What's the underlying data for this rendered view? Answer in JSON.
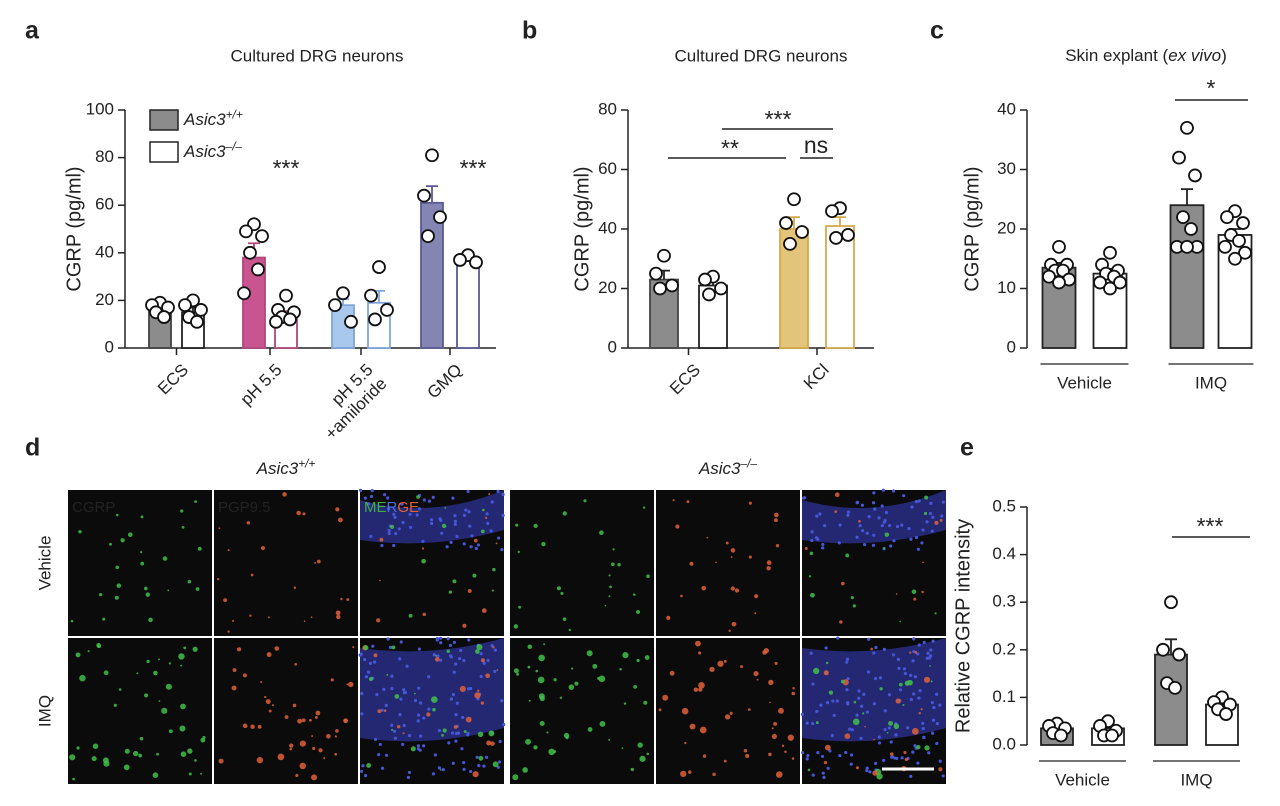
{
  "chart_data": [
    {
      "type": "bar",
      "panel_label": "a",
      "title": "Cultured DRG neurons",
      "ylabel": "CGRP (pg/ml)",
      "categories": [
        "ECS",
        "pH 5.5",
        "pH 5.5\n+amiloride",
        "GMQ"
      ],
      "colors": [
        "#8c8c8c",
        "#c8558f",
        "#a8c8ee",
        "#8585b3"
      ],
      "outline_colors": [
        "#222222",
        "#b0467c",
        "#7fa6d9",
        "#5a5a94"
      ],
      "series": [
        {
          "name": "Asic3+/+",
          "filled": true,
          "values": [
            16,
            38,
            18,
            61
          ],
          "errors": [
            2,
            6,
            2.5,
            7
          ],
          "points": [
            [
              19,
              18,
              17,
              15,
              13
            ],
            [
              52,
              49,
              47,
              40,
              33,
              23
            ],
            [
              23,
              18,
              11
            ],
            [
              81,
              64,
              55,
              47
            ]
          ]
        },
        {
          "name": "Asic3–/–",
          "filled": false,
          "values": [
            15,
            14,
            19,
            37
          ],
          "errors": [
            2,
            1.5,
            5,
            1.5
          ],
          "points": [
            [
              20,
              18,
              16,
              13,
              11
            ],
            [
              22,
              16,
              15,
              13,
              12,
              11
            ],
            [
              34,
              22,
              16,
              12
            ],
            [
              39,
              37,
              36
            ]
          ]
        }
      ],
      "ylim": [
        0,
        100
      ],
      "yticks": [
        0,
        20,
        40,
        60,
        80,
        100
      ],
      "legend": "top-left",
      "x_labels": "rotated",
      "annotations": [
        "***",
        "***"
      ]
    },
    {
      "type": "bar",
      "panel_label": "b",
      "title": "Cultured DRG neurons",
      "ylabel": "CGRP (pg/ml)",
      "categories": [
        "ECS",
        "KCl"
      ],
      "colors": [
        "#8c8c8c",
        "#e2c57a"
      ],
      "outline_colors": [
        "#222222",
        "#d4aa4a"
      ],
      "series": [
        {
          "filled": true,
          "values": [
            23,
            40
          ],
          "errors": [
            3,
            4
          ],
          "points": [
            [
              31,
              25,
              21,
              20
            ],
            [
              50,
              42,
              39,
              35
            ]
          ]
        },
        {
          "filled": false,
          "values": [
            21,
            41
          ],
          "errors": [
            2,
            3
          ],
          "points": [
            [
              24,
              23,
              20,
              18
            ],
            [
              47,
              46,
              38,
              37
            ]
          ]
        }
      ],
      "ylim": [
        0,
        80
      ],
      "yticks": [
        0,
        20,
        40,
        60,
        80
      ],
      "x_labels": "rotated",
      "annotations": [
        "**",
        "***",
        "ns"
      ]
    },
    {
      "type": "bar",
      "panel_label": "c",
      "title": "Skin explant (ex vivo)",
      "ylabel": "CGRP (pg/ml)",
      "categories": [
        "Vehicle",
        "IMQ"
      ],
      "colors": [
        "#8c8c8c",
        "#8c8c8c"
      ],
      "outline_colors": [
        "#222222",
        "#222222"
      ],
      "series": [
        {
          "filled": true,
          "values": [
            13.5,
            24
          ],
          "errors": [
            0.8,
            2.7
          ],
          "points": [
            [
              17,
              14,
              14,
              13,
              13,
              12,
              11.5,
              11
            ],
            [
              37,
              32,
              29,
              22,
              20,
              17,
              17,
              17
            ]
          ]
        },
        {
          "filled": false,
          "values": [
            12.5,
            19
          ],
          "errors": [
            0.8,
            1
          ],
          "points": [
            [
              16,
              14,
              13,
              12.5,
              12,
              11,
              11,
              10
            ],
            [
              23,
              22,
              21,
              19,
              18,
              17,
              16,
              15
            ]
          ]
        }
      ],
      "ylim": [
        0,
        40
      ],
      "yticks": [
        0,
        10,
        20,
        30,
        40
      ],
      "x_labels": "underlined",
      "annotations": [
        "*"
      ]
    },
    {
      "type": "bar",
      "panel_label": "e",
      "ylabel": "Relative CGRP intensity",
      "categories": [
        "Vehicle",
        "IMQ"
      ],
      "colors": [
        "#8c8c8c",
        "#8c8c8c"
      ],
      "outline_colors": [
        "#222222",
        "#222222"
      ],
      "series": [
        {
          "filled": true,
          "values": [
            0.035,
            0.19
          ],
          "errors": [
            0.006,
            0.032
          ],
          "points": [
            [
              0.045,
              0.04,
              0.035,
              0.025,
              0.02
            ],
            [
              0.3,
              0.2,
              0.19,
              0.13,
              0.12
            ]
          ]
        },
        {
          "filled": false,
          "values": [
            0.035,
            0.085
          ],
          "errors": [
            0.008,
            0.01
          ],
          "points": [
            [
              0.05,
              0.04,
              0.03,
              0.02,
              0.02
            ],
            [
              0.1,
              0.09,
              0.085,
              0.075,
              0.065
            ]
          ]
        }
      ],
      "ylim": [
        0,
        0.5
      ],
      "yticks": [
        {
          "value": 0,
          "label": "0.0"
        },
        0.1,
        0.2,
        0.3,
        0.4,
        0.5
      ],
      "x_labels": "underlined",
      "annotations": [
        "***"
      ]
    }
  ],
  "figure_d": {
    "panel_label": "d",
    "genotypes": [
      "Asic3+/+",
      "Asic3–/–"
    ],
    "channels": [
      "CGRP",
      "PGP9.5",
      "MERGE"
    ],
    "treatments": [
      "Vehicle",
      "IMQ"
    ]
  }
}
